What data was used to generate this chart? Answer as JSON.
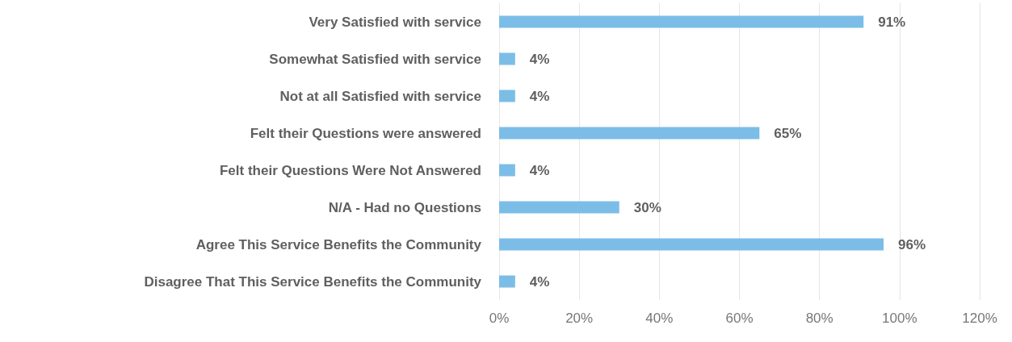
{
  "chart_data": {
    "type": "bar",
    "orientation": "horizontal",
    "categories": [
      "Very Satisfied with service",
      "Somewhat Satisfied with service",
      "Not at all Satisfied with service",
      "Felt their Questions were answered",
      "Felt their Questions Were Not Answered",
      "N/A - Had no Questions",
      "Agree This Service Benefits the Community",
      "Disagree That This Service Benefits the Community"
    ],
    "values": [
      91,
      4,
      4,
      65,
      4,
      30,
      96,
      4
    ],
    "value_labels": [
      "91%",
      "4%",
      "4%",
      "65%",
      "4%",
      "30%",
      "96%",
      "4%"
    ],
    "color": "#7cbde8",
    "xlim": [
      0,
      120
    ],
    "xticks": [
      {
        "value": 0,
        "label": "0%"
      },
      {
        "value": 20,
        "label": "20%"
      },
      {
        "value": 40,
        "label": "40%"
      },
      {
        "value": 60,
        "label": "60%"
      },
      {
        "value": 80,
        "label": "80%"
      },
      {
        "value": 100,
        "label": "100%"
      },
      {
        "value": 120,
        "label": "120%"
      }
    ],
    "grid": "x"
  }
}
